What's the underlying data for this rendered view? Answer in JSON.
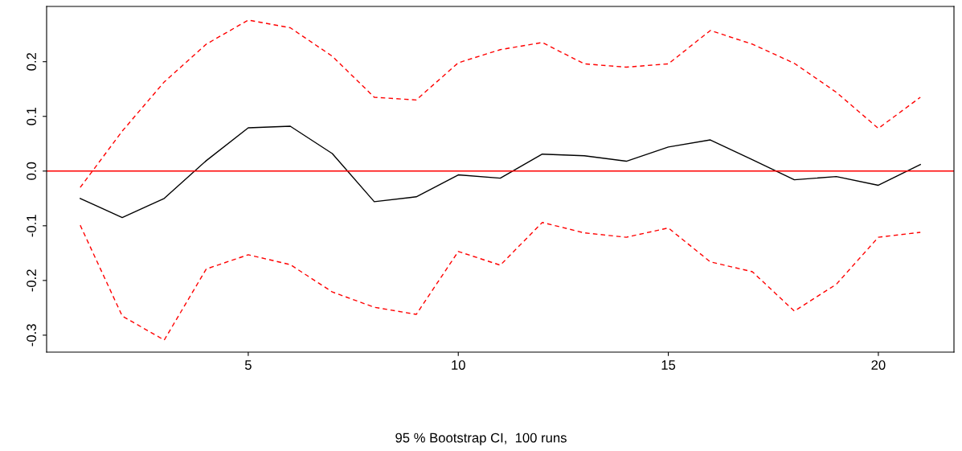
{
  "chart_data": {
    "type": "line",
    "annotations": [
      "95 % Bootstrap CI,  100 runs"
    ],
    "x": [
      1,
      2,
      3,
      4,
      5,
      6,
      7,
      8,
      9,
      10,
      11,
      12,
      13,
      14,
      15,
      16,
      17,
      18,
      19,
      20,
      21
    ],
    "series": [
      {
        "color": "#000000",
        "line_style": "solid",
        "values": [
          -0.05,
          -0.085,
          -0.05,
          0.019,
          0.079,
          0.082,
          0.032,
          -0.056,
          -0.047,
          -0.007,
          -0.013,
          0.031,
          0.028,
          0.018,
          0.044,
          0.057,
          0.021,
          -0.016,
          -0.01,
          -0.026,
          0.012
        ]
      },
      {
        "color": "#ff0000",
        "line_style": "dashed",
        "values": [
          -0.03,
          0.073,
          0.163,
          0.232,
          0.276,
          0.262,
          0.21,
          0.135,
          0.13,
          0.198,
          0.222,
          0.235,
          0.196,
          0.19,
          0.196,
          0.257,
          0.232,
          0.197,
          0.144,
          0.078,
          0.135
        ]
      },
      {
        "color": "#ff0000",
        "line_style": "dashed",
        "values": [
          -0.099,
          -0.265,
          -0.309,
          -0.179,
          -0.153,
          -0.171,
          -0.221,
          -0.249,
          -0.262,
          -0.147,
          -0.172,
          -0.094,
          -0.113,
          -0.121,
          -0.104,
          -0.166,
          -0.184,
          -0.256,
          -0.207,
          -0.121,
          -0.112
        ]
      }
    ],
    "xlim": [
      0.2,
      21.8
    ],
    "xticks": [
      5,
      10,
      15,
      20
    ],
    "ylim": [
      -0.331,
      0.301
    ],
    "yticks": [
      -0.3,
      -0.2,
      -0.1,
      {
        "value": 0,
        "label": "0.0"
      },
      0.1,
      0.2
    ],
    "ref_lines": [
      {
        "axis": "y",
        "value": 0,
        "color": "#ff0000",
        "line_style": "solid"
      }
    ],
    "grid": false,
    "legend": false
  }
}
